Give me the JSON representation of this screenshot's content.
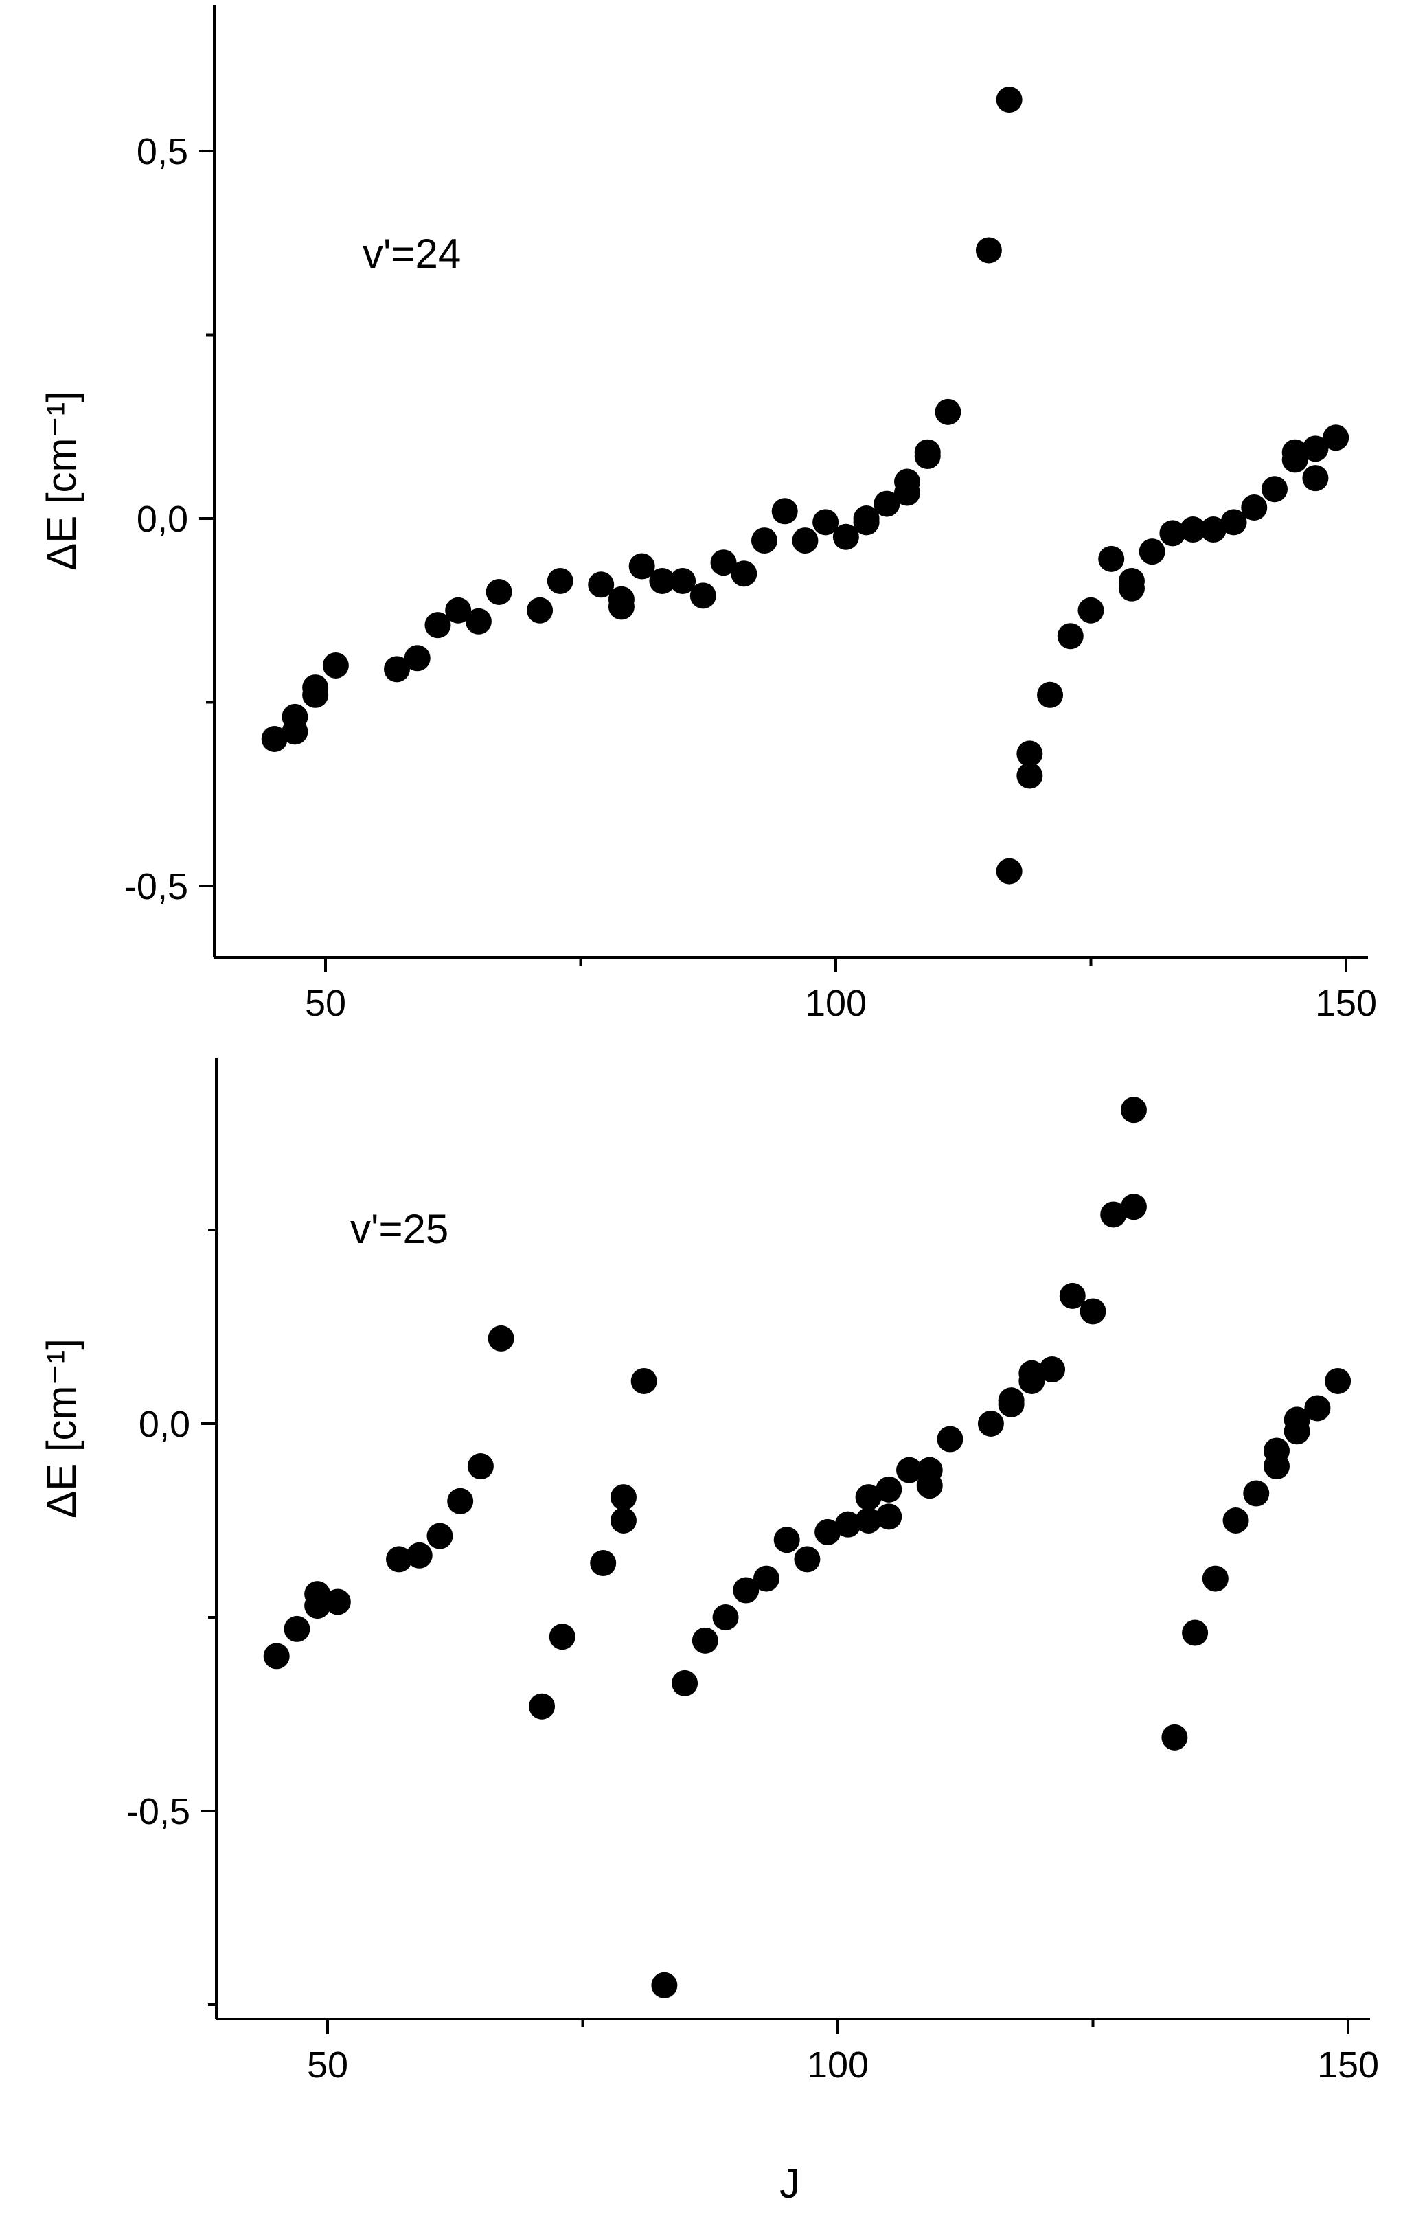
{
  "chart_data": [
    {
      "type": "scatter",
      "annotation": "v'=24",
      "xlabel": "",
      "ylabel": "ΔE [cm⁻¹]",
      "xlim": [
        40,
        152
      ],
      "ylim": [
        -0.6,
        0.7
      ],
      "x_major_ticks": [
        50,
        100,
        150
      ],
      "x_tick_labels": [
        "50",
        "100",
        "150"
      ],
      "y_major_ticks": [
        -0.5,
        0.0,
        0.5
      ],
      "y_tick_labels": [
        "-0,5",
        "0,0",
        "0,5"
      ],
      "y_minor_ticks": [
        -0.25,
        0.25
      ],
      "grid": false,
      "series": [
        {
          "color": "#000000",
          "x": [
            45,
            47,
            47,
            49,
            49,
            51,
            57,
            59,
            61,
            63,
            65,
            67,
            71,
            73,
            77,
            79,
            79,
            81,
            83,
            85,
            87,
            89,
            91,
            93,
            95,
            97,
            99,
            101,
            103,
            103,
            105,
            107,
            107,
            109,
            109,
            111,
            115,
            117,
            117,
            119,
            119,
            121,
            123,
            125,
            127,
            129,
            129,
            131,
            133,
            135,
            137,
            139,
            141,
            143,
            145,
            145,
            147,
            147,
            149
          ],
          "y": [
            -0.3,
            -0.29,
            -0.27,
            -0.24,
            -0.23,
            -0.2,
            -0.205,
            -0.19,
            -0.145,
            -0.125,
            -0.14,
            -0.1,
            -0.125,
            -0.085,
            -0.09,
            -0.11,
            -0.12,
            -0.065,
            -0.085,
            -0.085,
            -0.105,
            -0.06,
            -0.075,
            -0.03,
            0.01,
            -0.03,
            -0.005,
            -0.025,
            0.0,
            -0.005,
            0.02,
            0.035,
            0.05,
            0.085,
            0.09,
            0.145,
            0.365,
            0.57,
            -0.48,
            -0.35,
            -0.32,
            -0.24,
            -0.16,
            -0.125,
            -0.055,
            -0.095,
            -0.085,
            -0.045,
            -0.02,
            -0.015,
            -0.015,
            -0.005,
            0.015,
            0.04,
            0.08,
            0.09,
            0.055,
            0.095,
            0.11
          ]
        }
      ]
    },
    {
      "type": "scatter",
      "annotation": "v'=25",
      "xlabel": "J",
      "ylabel": "ΔE [cm⁻¹]",
      "xlim": [
        40,
        152
      ],
      "ylim": [
        -0.77,
        0.47
      ],
      "x_major_ticks": [
        50,
        100,
        150
      ],
      "x_tick_labels": [
        "50",
        "100",
        "150"
      ],
      "y_major_ticks": [
        -0.5,
        0.0
      ],
      "y_tick_labels": [
        "-0,5",
        "0,0"
      ],
      "y_minor_ticks": [
        -0.75,
        -0.25,
        0.25
      ],
      "grid": false,
      "series": [
        {
          "color": "#000000",
          "x": [
            45,
            47,
            49,
            49,
            51,
            57,
            59,
            61,
            63,
            65,
            67,
            71,
            73,
            77,
            79,
            79,
            81,
            83,
            85,
            87,
            89,
            91,
            93,
            95,
            97,
            99,
            101,
            103,
            103,
            105,
            105,
            107,
            109,
            109,
            111,
            115,
            117,
            117,
            119,
            119,
            121,
            123,
            125,
            127,
            129,
            129,
            133,
            135,
            137,
            139,
            141,
            143,
            143,
            145,
            145,
            147,
            149
          ],
          "y": [
            -0.3,
            -0.265,
            -0.22,
            -0.235,
            -0.23,
            -0.175,
            -0.17,
            -0.145,
            -0.1,
            -0.055,
            0.11,
            -0.365,
            -0.275,
            -0.18,
            -0.095,
            -0.125,
            0.055,
            -0.725,
            -0.335,
            -0.28,
            -0.25,
            -0.215,
            -0.2,
            -0.15,
            -0.175,
            -0.14,
            -0.13,
            -0.125,
            -0.095,
            -0.12,
            -0.085,
            -0.06,
            -0.06,
            -0.08,
            -0.02,
            0.0,
            0.025,
            0.03,
            0.055,
            0.065,
            0.07,
            0.165,
            0.145,
            0.27,
            0.405,
            0.28,
            -0.405,
            -0.27,
            -0.2,
            -0.125,
            -0.09,
            -0.055,
            -0.035,
            0.005,
            -0.01,
            0.02,
            0.055
          ]
        }
      ]
    }
  ]
}
